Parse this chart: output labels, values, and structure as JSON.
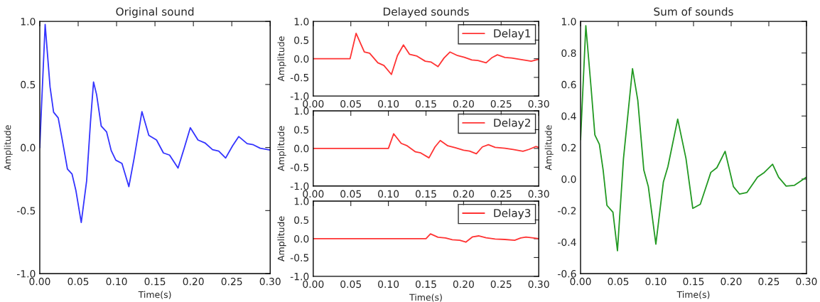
{
  "chart_data": [
    {
      "type": "line",
      "title": "Original sound",
      "xlabel": "Time(s)",
      "ylabel": "Amplitude",
      "xlim": [
        0,
        0.3
      ],
      "ylim": [
        -1,
        1
      ],
      "xticks": [
        {
          "value": 0,
          "label": "0.00"
        },
        {
          "value": 0.05,
          "label": "0.05"
        },
        {
          "value": 0.1,
          "label": "0.10"
        },
        {
          "value": 0.15,
          "label": "0.15"
        },
        {
          "value": 0.2,
          "label": "0.20"
        },
        {
          "value": 0.25,
          "label": "0.25"
        },
        {
          "value": 0.3,
          "label": "0.30"
        }
      ],
      "yticks": [
        {
          "value": -1,
          "label": "-1.0"
        },
        {
          "value": -0.5,
          "label": "-0.5"
        },
        {
          "value": 0,
          "label": "0.0"
        },
        {
          "value": 0.5,
          "label": "0.5"
        },
        {
          "value": 1,
          "label": "1.0"
        }
      ],
      "grid": false,
      "legend": false,
      "series": [
        {
          "color": "#3333ff",
          "x": [
            0,
            0.001,
            0.007,
            0.0134,
            0.018,
            0.024,
            0.029,
            0.036,
            0.042,
            0.047,
            0.054,
            0.061,
            0.066,
            0.07,
            0.074,
            0.08,
            0.087,
            0.093,
            0.099,
            0.107,
            0.116,
            0.123,
            0.133,
            0.142,
            0.152,
            0.161,
            0.169,
            0.18,
            0.188,
            0.196,
            0.206,
            0.215,
            0.225,
            0.233,
            0.242,
            0.251,
            0.259,
            0.27,
            0.278,
            0.287,
            0.3
          ],
          "values": [
            0,
            0.15,
            0.976,
            0.48,
            0.28,
            0.235,
            0.07,
            -0.17,
            -0.21,
            -0.34,
            -0.595,
            -0.265,
            0.2,
            0.52,
            0.42,
            0.17,
            0.124,
            -0.024,
            -0.1,
            -0.126,
            -0.31,
            -0.08,
            0.285,
            0.096,
            0.06,
            -0.043,
            -0.06,
            -0.163,
            -0.006,
            0.157,
            0.06,
            0.037,
            -0.017,
            -0.028,
            -0.083,
            0.013,
            0.087,
            0.031,
            0.022,
            -0.006,
            -0.02
          ]
        }
      ]
    },
    {
      "type": "line",
      "title": "Delayed sounds",
      "ylabel": "Amplitude",
      "xlim": [
        0,
        0.3
      ],
      "ylim": [
        -1,
        1
      ],
      "xticks": [
        {
          "value": 0,
          "label": "0.00"
        },
        {
          "value": 0.05,
          "label": "0.05"
        },
        {
          "value": 0.1,
          "label": "0.10"
        },
        {
          "value": 0.15,
          "label": "0.15"
        },
        {
          "value": 0.2,
          "label": "0.20"
        },
        {
          "value": 0.25,
          "label": "0.25"
        },
        {
          "value": 0.3,
          "label": "0.30"
        }
      ],
      "yticks": [
        {
          "value": -1,
          "label": "-1.0"
        },
        {
          "value": -0.5,
          "label": "-0.5"
        },
        {
          "value": 0,
          "label": "0.0"
        },
        {
          "value": 0.5,
          "label": "0.5"
        },
        {
          "value": 1,
          "label": "1.0"
        }
      ],
      "grid": false,
      "legend": "top right",
      "series": [
        {
          "name": "Delay1",
          "color": "#ff3333",
          "x": [
            0,
            0.049,
            0.057,
            0.068,
            0.075,
            0.086,
            0.094,
            0.104,
            0.112,
            0.12,
            0.128,
            0.138,
            0.149,
            0.157,
            0.166,
            0.174,
            0.182,
            0.192,
            0.201,
            0.211,
            0.219,
            0.23,
            0.238,
            0.245,
            0.255,
            0.264,
            0.274,
            0.29,
            0.3
          ],
          "values": [
            0,
            0,
            0.68,
            0.18,
            0.15,
            -0.11,
            -0.18,
            -0.42,
            0.085,
            0.37,
            0.12,
            0.07,
            -0.066,
            -0.09,
            -0.21,
            0.02,
            0.18,
            0.085,
            0.04,
            -0.033,
            -0.046,
            -0.11,
            0.033,
            0.105,
            0.033,
            0.02,
            -0.013,
            -0.066,
            -0.013
          ]
        }
      ]
    },
    {
      "type": "line",
      "ylabel": "Amplitude",
      "xlim": [
        0,
        0.3
      ],
      "ylim": [
        -1,
        1
      ],
      "xticks": [
        {
          "value": 0,
          "label": "0.00"
        },
        {
          "value": 0.05,
          "label": "0.05"
        },
        {
          "value": 0.1,
          "label": "0.10"
        },
        {
          "value": 0.15,
          "label": "0.15"
        },
        {
          "value": 0.2,
          "label": "0.20"
        },
        {
          "value": 0.25,
          "label": "0.25"
        },
        {
          "value": 0.3,
          "label": "0.30"
        }
      ],
      "yticks": [
        {
          "value": -1,
          "label": "-1.0"
        },
        {
          "value": -0.5,
          "label": "-0.5"
        },
        {
          "value": 0,
          "label": "0.0"
        },
        {
          "value": 0.5,
          "label": "0.5"
        },
        {
          "value": 1,
          "label": "1.0"
        }
      ],
      "grid": false,
      "legend": "top right",
      "series": [
        {
          "name": "Delay2",
          "color": "#ff3333",
          "x": [
            0,
            0.1,
            0.107,
            0.117,
            0.125,
            0.136,
            0.143,
            0.154,
            0.162,
            0.169,
            0.179,
            0.189,
            0.2,
            0.208,
            0.217,
            0.225,
            0.233,
            0.242,
            0.255,
            0.266,
            0.279,
            0.287,
            0.296,
            0.3
          ],
          "values": [
            0,
            0,
            0.39,
            0.135,
            0.07,
            -0.09,
            -0.12,
            -0.25,
            0.04,
            0.21,
            0.07,
            0.02,
            -0.045,
            -0.07,
            -0.14,
            0.04,
            0.1,
            0.03,
            0.006,
            -0.03,
            -0.077,
            -0.026,
            0.05,
            0.03
          ]
        }
      ]
    },
    {
      "type": "line",
      "xlabel": "Time(s)",
      "ylabel": "Amplitude",
      "xlim": [
        0,
        0.3
      ],
      "ylim": [
        -1,
        1
      ],
      "xticks": [
        {
          "value": 0,
          "label": "0.00"
        },
        {
          "value": 0.05,
          "label": "0.05"
        },
        {
          "value": 0.1,
          "label": "0.10"
        },
        {
          "value": 0.15,
          "label": "0.15"
        },
        {
          "value": 0.2,
          "label": "0.20"
        },
        {
          "value": 0.25,
          "label": "0.25"
        },
        {
          "value": 0.3,
          "label": "0.30"
        }
      ],
      "yticks": [
        {
          "value": -1,
          "label": "-1.0"
        },
        {
          "value": -0.5,
          "label": "-0.5"
        },
        {
          "value": 0,
          "label": "0.0"
        },
        {
          "value": 0.5,
          "label": "0.5"
        },
        {
          "value": 1,
          "label": "1.0"
        }
      ],
      "grid": false,
      "legend": "top right",
      "series": [
        {
          "name": "Delay3",
          "color": "#ff3333",
          "x": [
            0,
            0.15,
            0.156,
            0.166,
            0.176,
            0.185,
            0.195,
            0.203,
            0.212,
            0.22,
            0.23,
            0.242,
            0.255,
            0.268,
            0.276,
            0.283,
            0.293,
            0.3
          ],
          "values": [
            0,
            0,
            0.13,
            0.04,
            0.02,
            -0.025,
            -0.04,
            -0.09,
            0.05,
            0.075,
            0.025,
            -0.006,
            -0.02,
            -0.04,
            0.02,
            0.044,
            0.02,
            0
          ]
        }
      ]
    },
    {
      "type": "line",
      "title": "Sum of sounds",
      "xlabel": "Time(s)",
      "ylabel": "Amplitude",
      "xlim": [
        0,
        0.3
      ],
      "ylim": [
        -0.6,
        1
      ],
      "xticks": [
        {
          "value": 0,
          "label": "0.00"
        },
        {
          "value": 0.05,
          "label": "0.05"
        },
        {
          "value": 0.1,
          "label": "0.10"
        },
        {
          "value": 0.15,
          "label": "0.15"
        },
        {
          "value": 0.2,
          "label": "0.20"
        },
        {
          "value": 0.25,
          "label": "0.25"
        },
        {
          "value": 0.3,
          "label": "0.30"
        }
      ],
      "yticks": [
        {
          "value": -0.6,
          "label": "-0.6"
        },
        {
          "value": -0.4,
          "label": "-0.4"
        },
        {
          "value": -0.2,
          "label": "-0.2"
        },
        {
          "value": 0,
          "label": "0.0"
        },
        {
          "value": 0.2,
          "label": "0.2"
        },
        {
          "value": 0.4,
          "label": "0.4"
        },
        {
          "value": 0.6,
          "label": "0.6"
        },
        {
          "value": 0.8,
          "label": "0.8"
        },
        {
          "value": 1,
          "label": "1.0"
        }
      ],
      "grid": false,
      "legend": false,
      "series": [
        {
          "color": "#229922",
          "x": [
            0,
            0.007,
            0.014,
            0.019,
            0.025,
            0.03,
            0.035,
            0.043,
            0.049,
            0.057,
            0.069,
            0.076,
            0.084,
            0.09,
            0.1,
            0.11,
            0.116,
            0.129,
            0.14,
            0.149,
            0.159,
            0.173,
            0.181,
            0.192,
            0.203,
            0.211,
            0.221,
            0.235,
            0.244,
            0.255,
            0.263,
            0.273,
            0.284,
            0.3
          ],
          "values": [
            0.25,
            0.973,
            0.578,
            0.28,
            0.22,
            0.057,
            -0.167,
            -0.21,
            -0.455,
            0.13,
            0.7,
            0.5,
            0.057,
            -0.048,
            -0.413,
            -0.018,
            0.079,
            0.38,
            0.13,
            -0.186,
            -0.16,
            0.042,
            0.072,
            0.176,
            -0.048,
            -0.095,
            -0.085,
            0.012,
            0.042,
            0.094,
            0.012,
            -0.045,
            -0.04,
            0.012
          ]
        }
      ]
    }
  ]
}
